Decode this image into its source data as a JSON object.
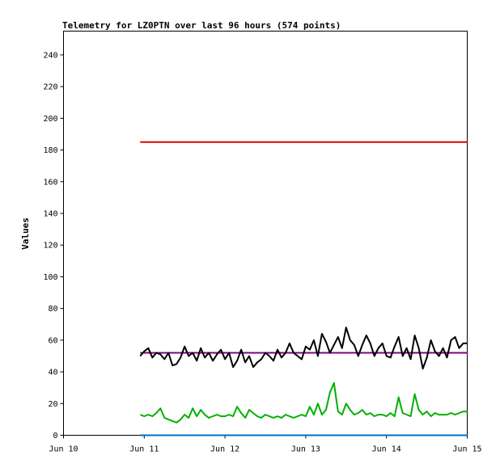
{
  "chart_data": {
    "type": "line",
    "title": "Telemetry for LZ0PTN over last 96 hours (574 points)",
    "xlabel": "",
    "ylabel": "Values",
    "xlim": [
      "Jun 10",
      "Jun 15"
    ],
    "ylim": [
      0,
      255
    ],
    "x_ticks": [
      "Jun 10",
      "Jun 11",
      "Jun 12",
      "Jun 13",
      "Jun 14",
      "Jun 15"
    ],
    "y_ticks": [
      0,
      20,
      40,
      60,
      80,
      100,
      120,
      140,
      160,
      180,
      200,
      220,
      240
    ],
    "grid": false,
    "legend": "none",
    "series": [
      {
        "color": "#e00000",
        "x": [
          0.95,
          5.0
        ],
        "values": [
          185,
          185
        ]
      },
      {
        "color": "#0070c0",
        "x": [
          0.95,
          5.0
        ],
        "values": [
          0,
          0
        ]
      },
      {
        "color": "#800080",
        "x": [
          0.95,
          5.0
        ],
        "values": [
          52,
          52
        ]
      },
      {
        "color": "#000000",
        "x": [
          0.95,
          1.0,
          1.05,
          1.1,
          1.15,
          1.2,
          1.25,
          1.3,
          1.35,
          1.4,
          1.45,
          1.5,
          1.55,
          1.6,
          1.65,
          1.7,
          1.75,
          1.8,
          1.85,
          1.9,
          1.95,
          2.0,
          2.05,
          2.1,
          2.15,
          2.2,
          2.25,
          2.3,
          2.35,
          2.4,
          2.45,
          2.5,
          2.55,
          2.6,
          2.65,
          2.7,
          2.75,
          2.8,
          2.85,
          2.9,
          2.95,
          3.0,
          3.05,
          3.1,
          3.15,
          3.2,
          3.25,
          3.3,
          3.35,
          3.4,
          3.45,
          3.5,
          3.55,
          3.6,
          3.65,
          3.7,
          3.75,
          3.8,
          3.85,
          3.9,
          3.95,
          4.0,
          4.05,
          4.1,
          4.15,
          4.2,
          4.25,
          4.3,
          4.35,
          4.4,
          4.45,
          4.5,
          4.55,
          4.6,
          4.65,
          4.7,
          4.75,
          4.8,
          4.85,
          4.9,
          4.95,
          5.0
        ],
        "values": [
          50,
          53,
          55,
          49,
          52,
          51,
          48,
          52,
          44,
          45,
          49,
          56,
          50,
          52,
          47,
          55,
          49,
          52,
          47,
          51,
          54,
          48,
          52,
          43,
          47,
          54,
          46,
          50,
          43,
          46,
          48,
          52,
          50,
          47,
          54,
          49,
          52,
          58,
          52,
          50,
          48,
          56,
          54,
          60,
          50,
          64,
          59,
          52,
          57,
          62,
          55,
          68,
          60,
          57,
          50,
          57,
          63,
          58,
          50,
          55,
          58,
          50,
          49,
          56,
          62,
          50,
          55,
          48,
          63,
          55,
          42,
          49,
          60,
          53,
          50,
          55,
          49,
          60,
          62,
          55,
          58,
          58
        ]
      },
      {
        "color": "#00b000",
        "x": [
          0.95,
          1.0,
          1.05,
          1.1,
          1.15,
          1.2,
          1.25,
          1.3,
          1.35,
          1.4,
          1.45,
          1.5,
          1.55,
          1.6,
          1.65,
          1.7,
          1.75,
          1.8,
          1.85,
          1.9,
          1.95,
          2.0,
          2.05,
          2.1,
          2.15,
          2.2,
          2.25,
          2.3,
          2.35,
          2.4,
          2.45,
          2.5,
          2.55,
          2.6,
          2.65,
          2.7,
          2.75,
          2.8,
          2.85,
          2.9,
          2.95,
          3.0,
          3.05,
          3.1,
          3.15,
          3.2,
          3.25,
          3.3,
          3.35,
          3.4,
          3.45,
          3.5,
          3.55,
          3.6,
          3.65,
          3.7,
          3.75,
          3.8,
          3.85,
          3.9,
          3.95,
          4.0,
          4.05,
          4.1,
          4.15,
          4.2,
          4.25,
          4.3,
          4.35,
          4.4,
          4.45,
          4.5,
          4.55,
          4.6,
          4.65,
          4.7,
          4.75,
          4.8,
          4.85,
          4.9,
          4.95,
          5.0
        ],
        "values": [
          13,
          12,
          13,
          12,
          14,
          17,
          11,
          10,
          9,
          8,
          10,
          13,
          11,
          17,
          12,
          16,
          13,
          11,
          12,
          13,
          12,
          12,
          13,
          12,
          18,
          14,
          11,
          16,
          14,
          12,
          11,
          13,
          12,
          11,
          12,
          11,
          13,
          12,
          11,
          12,
          13,
          12,
          18,
          13,
          20,
          13,
          16,
          27,
          33,
          15,
          13,
          20,
          16,
          13,
          14,
          16,
          13,
          14,
          12,
          13,
          13,
          12,
          14,
          12,
          24,
          14,
          13,
          12,
          26,
          16,
          13,
          15,
          12,
          14,
          13,
          13,
          13,
          14,
          13,
          14,
          15,
          15
        ]
      }
    ]
  }
}
